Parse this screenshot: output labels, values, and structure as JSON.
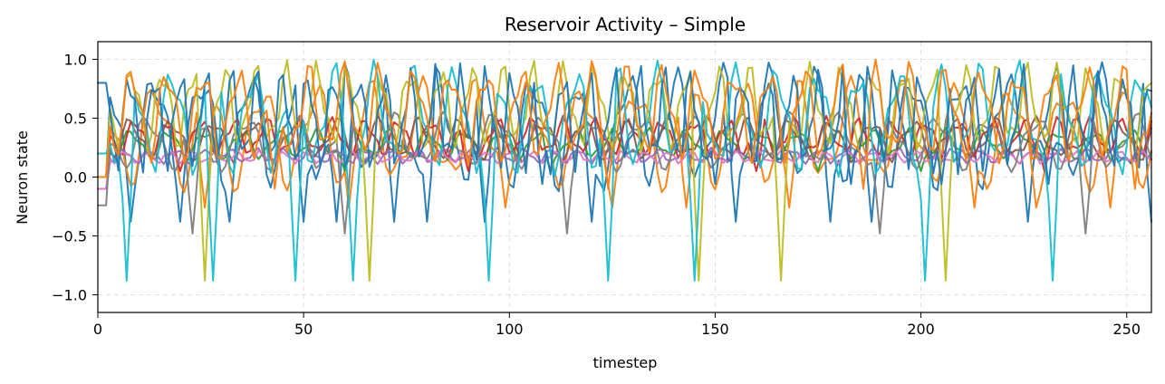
{
  "chart_data": {
    "type": "line",
    "title": "Reservoir Activity – Simple",
    "xlabel": "timestep",
    "ylabel": "Neuron state",
    "xlim": [
      0,
      256
    ],
    "ylim": [
      -1.15,
      1.15
    ],
    "x_ticks": [
      0,
      50,
      100,
      150,
      200,
      250
    ],
    "y_ticks": [
      1.0,
      0.5,
      0.0,
      -0.5,
      -1.0
    ],
    "x_tick_labels": [
      "0",
      "50",
      "100",
      "150",
      "200",
      "250"
    ],
    "y_tick_labels": [
      "1.0",
      "0.5",
      "0.0",
      "−0.5",
      "−1.0"
    ],
    "grid": true,
    "legend": "none",
    "x_step": 1,
    "series": [
      {
        "color": "#1f77b4",
        "base": 0.42,
        "amp": 0.56,
        "period": 11.5,
        "phase": 0.3,
        "start": 0.0,
        "dip_min": -0.38,
        "dips": [
          8,
          20,
          32,
          50,
          58,
          72,
          80,
          94,
          120,
          155,
          178,
          188,
          226,
          256
        ]
      },
      {
        "color": "#ff7f0e",
        "base": 0.36,
        "amp": 0.5,
        "period": 13.0,
        "phase": 1.1,
        "start": 0.0,
        "dip_min": -0.26,
        "dips": [
          26,
          61,
          99,
          125,
          143,
          168,
          213,
          228,
          246
        ]
      },
      {
        "color": "#2ca02c",
        "base": 0.28,
        "amp": 0.14,
        "period": 9.0,
        "phase": 2.2,
        "start": 0.0,
        "dip_min": 0.05,
        "dips": [
          60,
          110,
          175,
          200
        ]
      },
      {
        "color": "#d62728",
        "base": 0.34,
        "amp": 0.18,
        "period": 8.0,
        "phase": 0.7,
        "start": 0.0,
        "dip_min": 0.05,
        "dips": [
          20,
          90,
          160,
          230
        ]
      },
      {
        "color": "#9467bd",
        "base": 0.18,
        "amp": 0.07,
        "period": 6.5,
        "phase": 1.9,
        "start": -0.1,
        "dip_min": 0.08,
        "dips": []
      },
      {
        "color": "#8c564b",
        "base": 0.32,
        "amp": 0.2,
        "period": 10.0,
        "phase": 2.8,
        "start": 0.0,
        "dip_min": 0.02,
        "dips": []
      },
      {
        "color": "#e377c2",
        "base": 0.17,
        "amp": 0.06,
        "period": 5.5,
        "phase": 0.4,
        "start": -0.1,
        "dip_min": 0.08,
        "dips": []
      },
      {
        "color": "#7f7f7f",
        "base": 0.3,
        "amp": 0.26,
        "period": 12.0,
        "phase": 1.5,
        "start": -0.24,
        "dip_min": -0.48,
        "dips": [
          23,
          60,
          114,
          190,
          240
        ]
      },
      {
        "color": "#bcbd22",
        "base": 0.6,
        "amp": 0.4,
        "period": 7.5,
        "phase": 0.9,
        "start": 0.0,
        "dip_min": -0.88,
        "dips": [
          26,
          66,
          146,
          166,
          206
        ]
      },
      {
        "color": "#17becf",
        "base": 0.5,
        "amp": 0.5,
        "period": 9.8,
        "phase": 2.5,
        "start": 0.2,
        "dip_min": -0.88,
        "dips": [
          7,
          28,
          48,
          62,
          95,
          124,
          145,
          201,
          232
        ]
      },
      {
        "color": "#1f77b4",
        "base": 0.5,
        "amp": 0.48,
        "period": 6.2,
        "phase": 0.1,
        "start": 0.8,
        "dip_min": -0.06,
        "dips": [
          108,
          150,
          183,
          205,
          231
        ]
      },
      {
        "color": "#ff7f0e",
        "base": 0.55,
        "amp": 0.45,
        "period": 8.6,
        "phase": 1.8,
        "start": 0.0,
        "dip_min": -0.1,
        "dips": [
          43,
          124,
          186,
          252
        ]
      }
    ]
  }
}
